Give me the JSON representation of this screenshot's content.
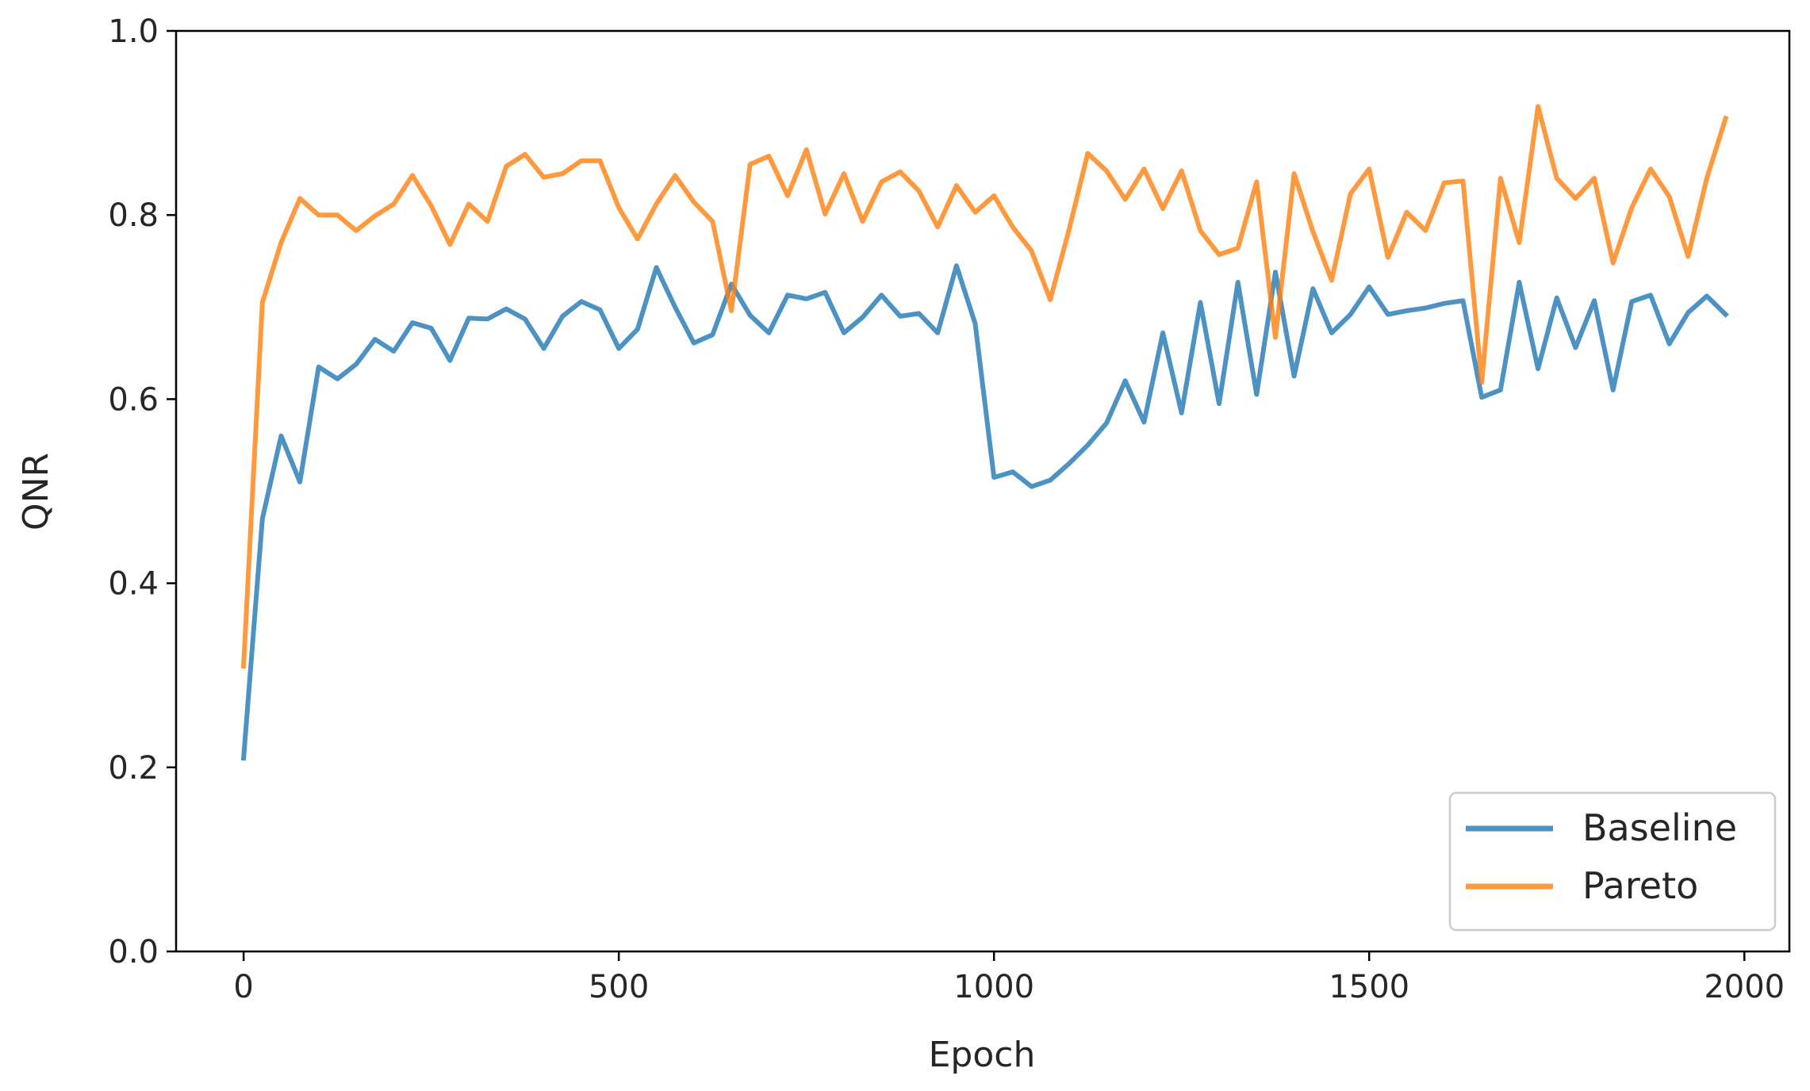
{
  "chart_data": {
    "type": "line",
    "title": "",
    "xlabel": "Epoch",
    "ylabel": "QNR",
    "xlim": [
      -90,
      2060
    ],
    "ylim": [
      0.0,
      1.0
    ],
    "xticks": [
      "0",
      "500",
      "1000",
      "1500",
      "2000"
    ],
    "yticks": [
      "0.0",
      "0.2",
      "0.4",
      "0.6",
      "0.8",
      "1.0"
    ],
    "grid": false,
    "legend_position": "lower-right",
    "series": [
      {
        "name": "Baseline",
        "color": "#1f77b4",
        "x": [
          0,
          25,
          50,
          75,
          100,
          125,
          150,
          175,
          200,
          225,
          250,
          275,
          300,
          325,
          350,
          375,
          400,
          425,
          450,
          475,
          500,
          525,
          550,
          575,
          600,
          625,
          650,
          675,
          700,
          725,
          750,
          775,
          800,
          825,
          850,
          875,
          900,
          925,
          950,
          975,
          1000,
          1025,
          1050,
          1075,
          1100,
          1125,
          1150,
          1175,
          1200,
          1225,
          1250,
          1275,
          1300,
          1325,
          1350,
          1375,
          1400,
          1425,
          1450,
          1475,
          1500,
          1525,
          1550,
          1575,
          1600,
          1625,
          1650,
          1675,
          1700,
          1725,
          1750,
          1775,
          1800,
          1825,
          1850,
          1875,
          1900,
          1925,
          1950,
          1975
        ],
        "values": [
          0.21,
          0.47,
          0.56,
          0.51,
          0.635,
          0.622,
          0.638,
          0.665,
          0.652,
          0.683,
          0.677,
          0.642,
          0.688,
          0.687,
          0.698,
          0.687,
          0.655,
          0.69,
          0.706,
          0.697,
          0.655,
          0.676,
          0.743,
          0.7,
          0.661,
          0.67,
          0.725,
          0.691,
          0.672,
          0.713,
          0.709,
          0.716,
          0.672,
          0.689,
          0.713,
          0.69,
          0.693,
          0.672,
          0.745,
          0.682,
          0.515,
          0.521,
          0.505,
          0.512,
          0.53,
          0.55,
          0.574,
          0.62,
          0.575,
          0.672,
          0.585,
          0.705,
          0.595,
          0.727,
          0.605,
          0.738,
          0.625,
          0.72,
          0.672,
          0.692,
          0.722,
          0.692,
          0.696,
          0.699,
          0.704,
          0.707,
          0.602,
          0.61,
          0.727,
          0.633,
          0.71,
          0.656,
          0.707,
          0.61,
          0.706,
          0.713,
          0.66,
          0.694,
          0.712,
          0.692
        ]
      },
      {
        "name": "Pareto",
        "color": "#ff7f0e",
        "x": [
          0,
          25,
          50,
          75,
          100,
          125,
          150,
          175,
          200,
          225,
          250,
          275,
          300,
          325,
          350,
          375,
          400,
          425,
          450,
          475,
          500,
          525,
          550,
          575,
          600,
          625,
          650,
          675,
          700,
          725,
          750,
          775,
          800,
          825,
          850,
          875,
          900,
          925,
          950,
          975,
          1000,
          1025,
          1050,
          1075,
          1100,
          1125,
          1150,
          1175,
          1200,
          1225,
          1250,
          1275,
          1300,
          1325,
          1350,
          1375,
          1400,
          1425,
          1450,
          1475,
          1500,
          1525,
          1550,
          1575,
          1600,
          1625,
          1650,
          1675,
          1700,
          1725,
          1750,
          1775,
          1800,
          1825,
          1850,
          1875,
          1900,
          1925,
          1950,
          1975
        ],
        "values": [
          0.31,
          0.705,
          0.77,
          0.818,
          0.8,
          0.8,
          0.783,
          0.799,
          0.812,
          0.843,
          0.81,
          0.768,
          0.812,
          0.793,
          0.853,
          0.866,
          0.841,
          0.845,
          0.859,
          0.859,
          0.808,
          0.774,
          0.812,
          0.843,
          0.814,
          0.793,
          0.696,
          0.855,
          0.864,
          0.821,
          0.871,
          0.801,
          0.845,
          0.793,
          0.836,
          0.847,
          0.826,
          0.787,
          0.832,
          0.803,
          0.821,
          0.787,
          0.761,
          0.708,
          0.784,
          0.867,
          0.848,
          0.817,
          0.85,
          0.807,
          0.848,
          0.783,
          0.757,
          0.764,
          0.836,
          0.667,
          0.845,
          0.782,
          0.729,
          0.823,
          0.85,
          0.754,
          0.803,
          0.783,
          0.835,
          0.837,
          0.618,
          0.84,
          0.77,
          0.918,
          0.84,
          0.818,
          0.84,
          0.748,
          0.808,
          0.85,
          0.82,
          0.755,
          0.84,
          0.905
        ]
      }
    ]
  }
}
